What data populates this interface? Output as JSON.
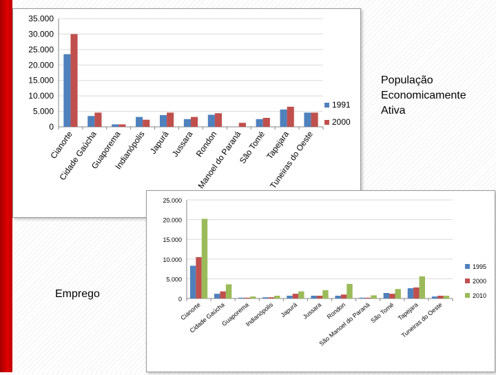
{
  "labels": {
    "pea": "População Economicamente Ativa",
    "emprego": "Emprego"
  },
  "colors": {
    "blue": "#4f81bd",
    "red": "#c0504d",
    "green": "#9bbb59",
    "grid": "#d9d9d9",
    "axis": "#868686"
  },
  "chart_data": [
    {
      "type": "bar",
      "title": "",
      "xlabel": "",
      "ylabel": "",
      "categories": [
        "Cianorte",
        "Cidade Gaúcha",
        "Guaporema",
        "Indianópolis",
        "Japurá",
        "Jussara",
        "Rondon",
        "Manoel do Paraná",
        "São Tomé",
        "Tapejara",
        "Tuneiras do Oeste"
      ],
      "series": [
        {
          "name": "1991",
          "values": [
            23500,
            3500,
            800,
            3200,
            3800,
            2500,
            3900,
            0,
            2500,
            5600,
            4600
          ]
        },
        {
          "name": "2000",
          "values": [
            30000,
            4600,
            800,
            2300,
            4600,
            3200,
            4400,
            1300,
            2900,
            6500,
            4600
          ]
        }
      ],
      "ylim": [
        0,
        35000
      ],
      "yticks": [
        0,
        5000,
        10000,
        15000,
        20000,
        25000,
        30000,
        35000
      ],
      "ytick_labels": [
        "0",
        "5.000",
        "10.000",
        "15.000",
        "20.000",
        "25.000",
        "30.000",
        "35.000"
      ],
      "grid": true,
      "legend": "right"
    },
    {
      "type": "bar",
      "title": "",
      "xlabel": "",
      "ylabel": "",
      "categories": [
        "Cianorte",
        "Cidade Gaúcha",
        "Guaporema",
        "Indianópolis",
        "Japurá",
        "Jussara",
        "Rondon",
        "São Manoel do Paraná",
        "São Tomé",
        "Tapejara",
        "Tuneiras do Oeste"
      ],
      "series": [
        {
          "name": "1995",
          "values": [
            8300,
            1200,
            200,
            300,
            700,
            700,
            700,
            200,
            1400,
            2600,
            500
          ]
        },
        {
          "name": "2000",
          "values": [
            10500,
            1800,
            200,
            300,
            1200,
            700,
            1000,
            200,
            1200,
            2800,
            700
          ]
        },
        {
          "name": "2010",
          "values": [
            20200,
            3600,
            500,
            700,
            1800,
            2100,
            3700,
            800,
            2400,
            5600,
            700
          ]
        }
      ],
      "ylim": [
        0,
        25000
      ],
      "yticks": [
        0,
        5000,
        10000,
        15000,
        20000,
        25000
      ],
      "ytick_labels": [
        "0",
        "5.000",
        "10.000",
        "15.000",
        "20.000",
        "25.000"
      ],
      "grid": true,
      "legend": "right"
    }
  ]
}
